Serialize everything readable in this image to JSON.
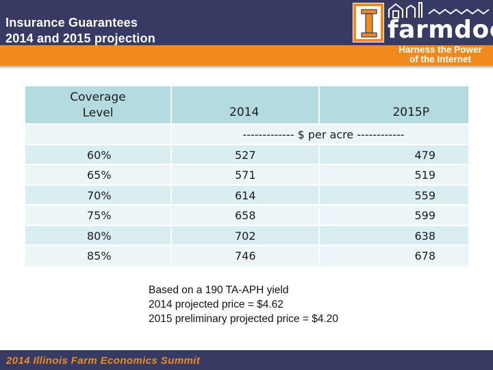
{
  "header": {
    "title_line1": "Insurance Guarantees",
    "title_line2": "2014 and 2015 projection"
  },
  "logo": {
    "letter": "I",
    "wordmark": "farmdoc",
    "tagline_line1": "Harness the Power",
    "tagline_line2": "of the Internet"
  },
  "table": {
    "columns": [
      "Coverage Level",
      "2014",
      "2015P"
    ],
    "column1_line1": "Coverage",
    "column1_line2": "Level",
    "units": "------------- $ per acre ------------",
    "rows": [
      {
        "level": "60%",
        "y2014": "527",
        "y2015": "479"
      },
      {
        "level": "65%",
        "y2014": "571",
        "y2015": "519"
      },
      {
        "level": "70%",
        "y2014": "614",
        "y2015": "559"
      },
      {
        "level": "75%",
        "y2014": "658",
        "y2015": "599"
      },
      {
        "level": "80%",
        "y2014": "702",
        "y2015": "638"
      },
      {
        "level": "85%",
        "y2014": "746",
        "y2015": "678"
      }
    ]
  },
  "notes": [
    "Based on a 190 TA-APH yield",
    "2014 projected price = $4.62",
    "2015 preliminary projected price = $4.20"
  ],
  "footer": {
    "text": "2014 Illinois Farm Economics Summit"
  },
  "colors": {
    "navy": "#373a63",
    "orange": "#f08a1e",
    "header_teal": "#b4dbe0",
    "row_light": "#daeef1"
  }
}
